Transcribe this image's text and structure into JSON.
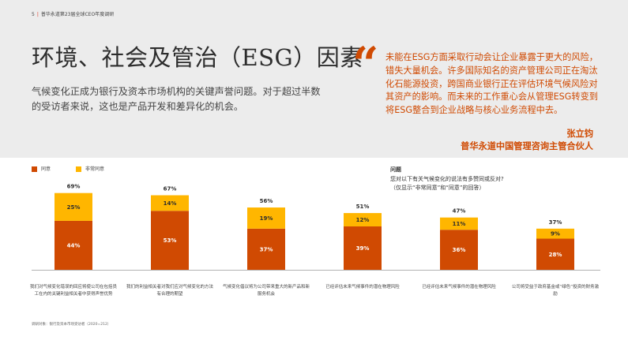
{
  "header": {
    "page_number": "5",
    "publication": "普华永道第23届全球CEO年度调研"
  },
  "title": "环境、社会及管治（ESG）因素",
  "intro": "气候变化正成为银行及资本市场机构的关键声誉问题。对于超过半数的受访者来说，这也是产品开发和差异化的机会。",
  "quote": {
    "mark": "“",
    "text": "未能在ESG方面采取行动会让企业暴露于更大的风险，错失大量机会。许多国际知名的资产管理公司正在淘汰化石能源投资，跨国商业银行正在评估环境气候风险对其资产的影响。而未来的工作重心会从管理ESG转变到将ESG整合到企业战略与核心业务流程中去。",
    "author": "张立钧",
    "author_title": "普华永道中国管理咨询主管合伙人"
  },
  "legend": {
    "agree": "同意",
    "strongly_agree": "非常同意"
  },
  "question": {
    "label": "问题",
    "text": "您对以下有关气候变化的说法有多赞同或反对?",
    "note": "（仅显示“非常同意”和“同意”的回答）"
  },
  "colors": {
    "agree": "#d04a02",
    "strongly_agree": "#ffb600",
    "accent": "#d04a02",
    "band": "#ececec"
  },
  "chart_data": {
    "type": "bar",
    "stacked": true,
    "categories": [
      "我们对气候变化错误的回应将使公司在包括员工在内的关键利益相关者中获得声誉优势",
      "我们的利益相关者对我们应对气候变化的方法有合理的期望",
      "气候变化倡议将为公司带来重大的新产品和新服务机会",
      "已经评估未来气候事件的潜在物理风险",
      "已经评估未来气候事件的潜在物理风险",
      "公司将受益于政府基金或“绿色”投资的财务激励"
    ],
    "series": [
      {
        "name": "同意",
        "values": [
          44,
          53,
          37,
          39,
          36,
          28
        ]
      },
      {
        "name": "非常同意",
        "values": [
          25,
          14,
          19,
          12,
          11,
          9
        ]
      }
    ],
    "totals": [
      69,
      67,
      56,
      51,
      47,
      37
    ],
    "unit": "%",
    "ylim": [
      0,
      100
    ],
    "grid": false
  },
  "footnote": "调研对象：银行及资本市场受访者（2020=212）"
}
